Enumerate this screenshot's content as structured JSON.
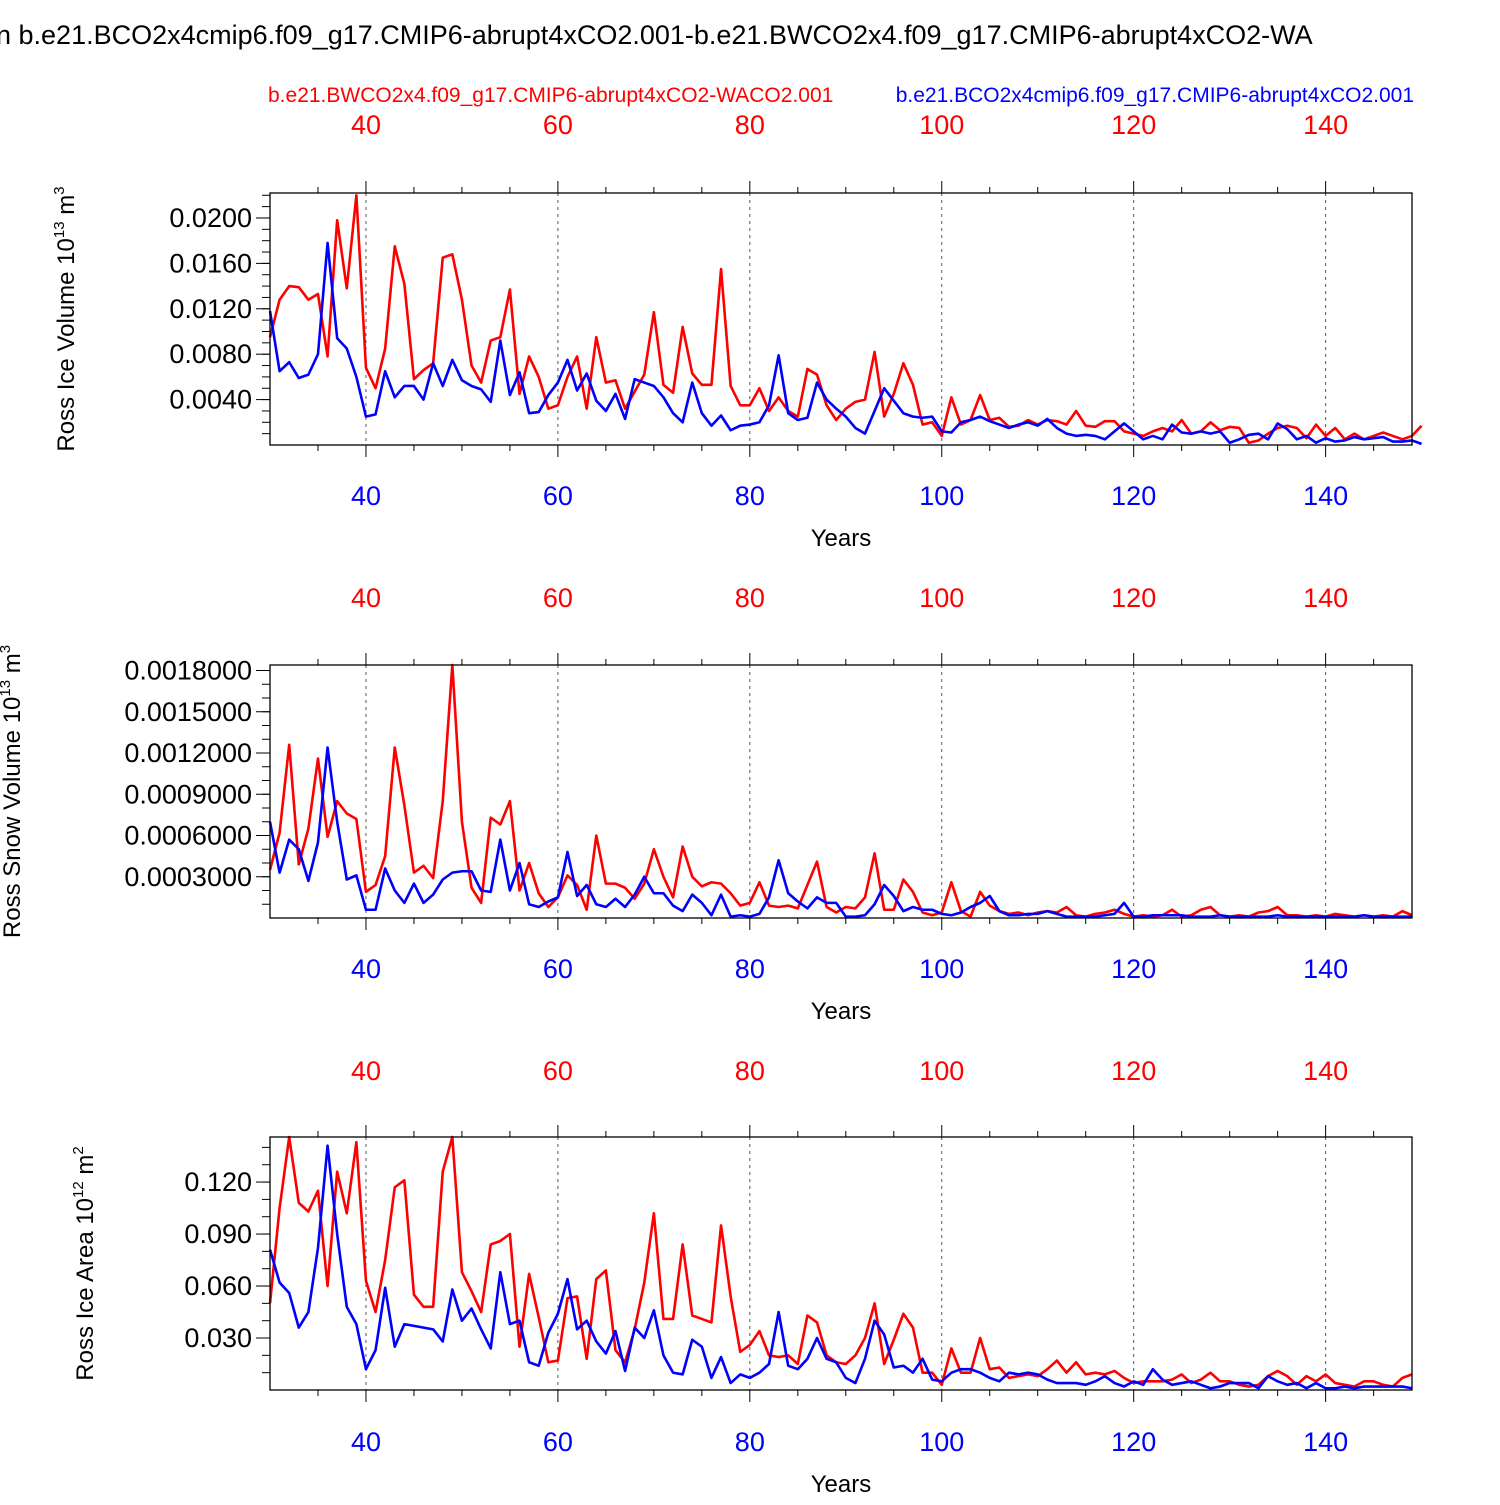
{
  "title": "n b.e21.BCO2x4cmip6.f09_g17.CMIP6-abrupt4xCO2.001-b.e21.BWCO2x4.f09_g17.CMIP6-abrupt4xCO2-WA",
  "colors": {
    "red": "#ff0000",
    "blue": "#0000ff",
    "axis": "#000000",
    "grid": "#555555"
  },
  "chart_data": [
    {
      "type": "line",
      "ylabel_main": "Ross Ice Volume 10",
      "ylabel_exp": "13",
      "ylabel_unit": " m",
      "ylabel_unit_exp": "3",
      "xlabel": "Years",
      "xlim": [
        30,
        149
      ],
      "ylim": [
        0,
        0.0222
      ],
      "x_ticks": [
        "40",
        "60",
        "80",
        "100",
        "120",
        "140"
      ],
      "y_ticks": [
        "0.0040",
        "0.0080",
        "0.0120",
        "0.0160",
        "0.0200"
      ],
      "y_tick_step": 0.004,
      "y_minor_step": 0.001,
      "top_legend_red": "b.e21.BWCO2x4.f09_g17.CMIP6-abrupt4xCO2-WACO2.001",
      "top_legend_blue": "b.e21.BCO2x4cmip6.f09_g17.CMIP6-abrupt4xCO2.001",
      "series": [
        {
          "name": "b.e21.BWCO2x4.f09_g17.CMIP6-abrupt4xCO2-WACO2.001",
          "color": "#ff0000",
          "values": [
            0.0095,
            0.0128,
            0.014,
            0.0139,
            0.0128,
            0.0133,
            0.0078,
            0.0198,
            0.0138,
            0.022,
            0.0068,
            0.005,
            0.0085,
            0.0175,
            0.0142,
            0.0058,
            0.0066,
            0.0072,
            0.0165,
            0.0168,
            0.0128,
            0.007,
            0.0055,
            0.0092,
            0.0095,
            0.0137,
            0.0045,
            0.0078,
            0.006,
            0.0032,
            0.0035,
            0.006,
            0.0078,
            0.0032,
            0.0095,
            0.0055,
            0.0057,
            0.0032,
            0.0047,
            0.0062,
            0.0117,
            0.0053,
            0.0046,
            0.0104,
            0.0063,
            0.0053,
            0.0053,
            0.0155,
            0.0052,
            0.0035,
            0.0035,
            0.005,
            0.003,
            0.0042,
            0.003,
            0.0025,
            0.0067,
            0.0062,
            0.0035,
            0.0022,
            0.0032,
            0.0038,
            0.004,
            0.0082,
            0.0025,
            0.0045,
            0.0072,
            0.0053,
            0.0018,
            0.002,
            0.0008,
            0.0042,
            0.0018,
            0.0022,
            0.0044,
            0.0022,
            0.0024,
            0.0016,
            0.0017,
            0.0022,
            0.0018,
            0.0022,
            0.0021,
            0.0018,
            0.003,
            0.0017,
            0.0016,
            0.0021,
            0.0021,
            0.0012,
            0.001,
            0.0008,
            0.0012,
            0.0015,
            0.0012,
            0.0022,
            0.001,
            0.0012,
            0.002,
            0.0013,
            0.0016,
            0.0015,
            0.0002,
            0.0004,
            0.001,
            0.0015,
            0.0017,
            0.0015,
            0.0006,
            0.0018,
            0.0008,
            0.0015,
            0.0005,
            0.001,
            0.0005,
            0.0008,
            0.0011,
            0.0008,
            0.0005,
            0.0008,
            0.0017
          ],
          "offset": 0
        },
        {
          "name": "b.e21.BCO2x4cmip6.f09_g17.CMIP6-abrupt4xCO2.001",
          "color": "#0000ff",
          "values": [
            0.0118,
            0.0065,
            0.0073,
            0.0059,
            0.0062,
            0.008,
            0.0178,
            0.0094,
            0.0085,
            0.006,
            0.0025,
            0.0027,
            0.0065,
            0.0042,
            0.0052,
            0.0052,
            0.004,
            0.0072,
            0.0052,
            0.0075,
            0.0057,
            0.0052,
            0.0049,
            0.0038,
            0.0092,
            0.0044,
            0.0064,
            0.0028,
            0.0029,
            0.0044,
            0.0055,
            0.0075,
            0.0048,
            0.0063,
            0.0039,
            0.003,
            0.0045,
            0.0023,
            0.0058,
            0.0055,
            0.0052,
            0.0042,
            0.0028,
            0.002,
            0.0055,
            0.0028,
            0.0017,
            0.0026,
            0.0013,
            0.0017,
            0.0018,
            0.002,
            0.0035,
            0.0079,
            0.0028,
            0.0022,
            0.0024,
            0.0055,
            0.004,
            0.0032,
            0.0025,
            0.0015,
            0.001,
            0.003,
            0.005,
            0.0039,
            0.0028,
            0.0025,
            0.0024,
            0.0025,
            0.0012,
            0.0011,
            0.002,
            0.0022,
            0.0025,
            0.0021,
            0.0018,
            0.0015,
            0.0018,
            0.002,
            0.0017,
            0.0023,
            0.0015,
            0.001,
            0.0008,
            0.0009,
            0.0008,
            0.0005,
            0.0012,
            0.0019,
            0.0012,
            0.0005,
            0.0008,
            0.0005,
            0.0018,
            0.0011,
            0.001,
            0.0012,
            0.001,
            0.0012,
            0.0002,
            0.0005,
            0.0009,
            0.001,
            0.0005,
            0.0019,
            0.0014,
            0.0005,
            0.0008,
            0.0002,
            0.0006,
            0.0003,
            0.0004,
            0.0007,
            0.0005,
            0.0006,
            0.0007,
            0.0003,
            0.0003,
            0.0004,
            0.0001
          ],
          "offset": 0
        }
      ]
    },
    {
      "type": "line",
      "ylabel_main": "Ross Snow Volume 10",
      "ylabel_exp": "13",
      "ylabel_unit": " m",
      "ylabel_unit_exp": "3",
      "xlabel": "Years",
      "xlim": [
        30,
        149
      ],
      "ylim": [
        0,
        0.00184
      ],
      "x_ticks": [
        "40",
        "60",
        "80",
        "100",
        "120",
        "140"
      ],
      "y_ticks": [
        "0.0003000",
        "0.0006000",
        "0.0009000",
        "0.0012000",
        "0.0015000",
        "0.0018000"
      ],
      "y_tick_step": 0.0003,
      "y_minor_step": 0.0001,
      "series": [
        {
          "name": "b.e21.BWCO2x4.f09_g17.CMIP6-abrupt4xCO2-WACO2.001",
          "color": "#ff0000",
          "values": [
            0.00035,
            0.00062,
            0.00126,
            0.00039,
            0.00065,
            0.00116,
            0.00059,
            0.00085,
            0.00076,
            0.00072,
            0.00019,
            0.00024,
            0.00045,
            0.00124,
            0.00082,
            0.00033,
            0.00038,
            0.00029,
            0.00085,
            0.00184,
            0.0007,
            0.00022,
            0.00011,
            0.00073,
            0.00068,
            0.00085,
            0.0002,
            0.0004,
            0.00018,
            8e-05,
            0.00015,
            0.00031,
            0.00024,
            6e-05,
            0.0006,
            0.00025,
            0.00025,
            0.00022,
            0.00014,
            0.00025,
            0.0005,
            0.0003,
            0.00015,
            0.00052,
            0.0003,
            0.00023,
            0.00026,
            0.00025,
            0.00018,
            9e-05,
            0.00011,
            0.00026,
            9e-05,
            8e-05,
            9e-05,
            7e-05,
            0.00024,
            0.00041,
            8e-05,
            4e-05,
            8e-05,
            7e-05,
            0.00015,
            0.00047,
            6e-05,
            6e-05,
            0.00028,
            0.00019,
            4e-05,
            2e-05,
            4e-05,
            0.00026,
            5e-05,
            1e-05,
            0.00019,
            9e-05,
            5e-05,
            3e-05,
            4e-05,
            2e-05,
            4e-05,
            5e-05,
            4e-05,
            8e-05,
            2e-05,
            1e-05,
            3e-05,
            4e-05,
            6e-05,
            3e-05,
            1e-05,
            2e-05,
            1e-05,
            2e-05,
            6e-05,
            1e-05,
            2e-05,
            6e-05,
            8e-05,
            2e-05,
            1e-05,
            2e-05,
            1e-05,
            4e-05,
            5e-05,
            8e-05,
            2e-05,
            2e-05,
            1e-05,
            2e-05,
            1e-05,
            3e-05,
            2e-05,
            1e-05,
            2e-05,
            1e-05,
            2e-05,
            1e-05,
            5e-05,
            2e-05
          ],
          "offset": 0
        },
        {
          "name": "b.e21.BCO2x4cmip6.f09_g17.CMIP6-abrupt4xCO2.001",
          "color": "#0000ff",
          "values": [
            0.0007,
            0.00033,
            0.00057,
            0.0005,
            0.00027,
            0.00055,
            0.00124,
            0.0007,
            0.00028,
            0.00031,
            6e-05,
            6e-05,
            0.00036,
            0.0002,
            0.00011,
            0.00025,
            0.00011,
            0.00017,
            0.00028,
            0.00033,
            0.00034,
            0.00034,
            0.0002,
            0.00019,
            0.00057,
            0.0002,
            0.0004,
            0.0001,
            8e-05,
            0.00012,
            0.00015,
            0.00048,
            0.00016,
            0.00024,
            0.0001,
            8e-05,
            0.00014,
            8e-05,
            0.00017,
            0.0003,
            0.00018,
            0.00018,
            9e-05,
            5e-05,
            0.00017,
            0.00011,
            2e-05,
            0.00017,
            1e-05,
            2e-05,
            1e-05,
            3e-05,
            0.00015,
            0.00042,
            0.00018,
            0.00012,
            7e-05,
            0.00015,
            0.00011,
            0.00011,
            1e-05,
            1e-05,
            2e-05,
            0.0001,
            0.00024,
            0.00016,
            5e-05,
            8e-05,
            6e-05,
            6e-05,
            3e-05,
            2e-05,
            4e-05,
            8e-05,
            0.00011,
            0.00016,
            5e-05,
            2e-05,
            2e-05,
            3e-05,
            3e-05,
            5e-05,
            3e-05,
            1e-05,
            1e-05,
            1e-05,
            1e-05,
            2e-05,
            3e-05,
            0.00011,
            1e-05,
            1e-05,
            2e-05,
            2e-05,
            2e-05,
            2e-05,
            1e-05,
            1e-05,
            1e-05,
            2e-05,
            1e-05,
            1e-05,
            1e-05,
            1e-05,
            1e-05,
            2e-05,
            1e-05,
            1e-05,
            1e-05,
            1e-05,
            1e-05,
            1e-05,
            1e-05,
            1e-05,
            2e-05,
            1e-05,
            1e-05,
            1e-05,
            1e-05,
            1e-05
          ],
          "offset": 0
        }
      ]
    },
    {
      "type": "line",
      "ylabel_main": "Ross Ice Area 10",
      "ylabel_exp": "12",
      "ylabel_unit": " m",
      "ylabel_unit_exp": "2",
      "xlabel": "Years",
      "xlim": [
        30,
        149
      ],
      "ylim": [
        0,
        0.146
      ],
      "x_ticks": [
        "40",
        "60",
        "80",
        "100",
        "120",
        "140"
      ],
      "y_ticks": [
        "0.030",
        "0.060",
        "0.090",
        "0.120"
      ],
      "y_tick_step": 0.03,
      "y_minor_step": 0.01,
      "series": [
        {
          "name": "b.e21.BWCO2x4.f09_g17.CMIP6-abrupt4xCO2-WACO2.001",
          "color": "#ff0000",
          "values": [
            0.05,
            0.105,
            0.146,
            0.108,
            0.103,
            0.115,
            0.06,
            0.126,
            0.102,
            0.143,
            0.063,
            0.045,
            0.075,
            0.117,
            0.121,
            0.055,
            0.048,
            0.048,
            0.126,
            0.146,
            0.068,
            0.057,
            0.045,
            0.084,
            0.086,
            0.09,
            0.025,
            0.067,
            0.042,
            0.016,
            0.017,
            0.053,
            0.054,
            0.018,
            0.064,
            0.069,
            0.023,
            0.016,
            0.035,
            0.062,
            0.102,
            0.041,
            0.041,
            0.084,
            0.043,
            0.041,
            0.039,
            0.095,
            0.054,
            0.022,
            0.026,
            0.034,
            0.02,
            0.019,
            0.02,
            0.015,
            0.043,
            0.039,
            0.02,
            0.016,
            0.015,
            0.02,
            0.03,
            0.05,
            0.015,
            0.029,
            0.044,
            0.036,
            0.01,
            0.01,
            0.003,
            0.024,
            0.01,
            0.01,
            0.03,
            0.012,
            0.013,
            0.007,
            0.008,
            0.009,
            0.008,
            0.012,
            0.017,
            0.01,
            0.016,
            0.009,
            0.01,
            0.009,
            0.011,
            0.007,
            0.004,
            0.005,
            0.005,
            0.005,
            0.006,
            0.009,
            0.004,
            0.006,
            0.01,
            0.005,
            0.005,
            0.003,
            0.002,
            0.003,
            0.008,
            0.011,
            0.008,
            0.003,
            0.008,
            0.005,
            0.009,
            0.004,
            0.003,
            0.002,
            0.005,
            0.005,
            0.003,
            0.002,
            0.007,
            0.009
          ],
          "offset": 0
        },
        {
          "name": "b.e21.BCO2x4cmip6.f09_g17.CMIP6-abrupt4xCO2.001",
          "color": "#0000ff",
          "values": [
            0.081,
            0.062,
            0.056,
            0.036,
            0.045,
            0.082,
            0.141,
            0.09,
            0.048,
            0.038,
            0.012,
            0.023,
            0.059,
            0.025,
            0.038,
            0.037,
            0.036,
            0.035,
            0.028,
            0.058,
            0.04,
            0.047,
            0.035,
            0.024,
            0.068,
            0.038,
            0.04,
            0.016,
            0.014,
            0.033,
            0.044,
            0.064,
            0.035,
            0.04,
            0.028,
            0.021,
            0.034,
            0.011,
            0.036,
            0.03,
            0.046,
            0.02,
            0.01,
            0.009,
            0.029,
            0.025,
            0.007,
            0.019,
            0.004,
            0.009,
            0.007,
            0.01,
            0.015,
            0.045,
            0.014,
            0.012,
            0.018,
            0.03,
            0.018,
            0.016,
            0.007,
            0.004,
            0.018,
            0.04,
            0.032,
            0.013,
            0.014,
            0.01,
            0.018,
            0.006,
            0.005,
            0.01,
            0.012,
            0.012,
            0.01,
            0.007,
            0.005,
            0.01,
            0.009,
            0.01,
            0.009,
            0.006,
            0.004,
            0.004,
            0.004,
            0.003,
            0.005,
            0.008,
            0.004,
            0.002,
            0.005,
            0.003,
            0.012,
            0.006,
            0.003,
            0.004,
            0.005,
            0.003,
            0.001,
            0.002,
            0.004,
            0.004,
            0.004,
            0.001,
            0.008,
            0.005,
            0.003,
            0.004,
            0.001,
            0.004,
            0.001,
            0.001,
            0.002,
            0.001,
            0.002,
            0.002,
            0.002,
            0.002,
            0.002,
            0.001
          ],
          "offset": 0
        }
      ]
    }
  ]
}
